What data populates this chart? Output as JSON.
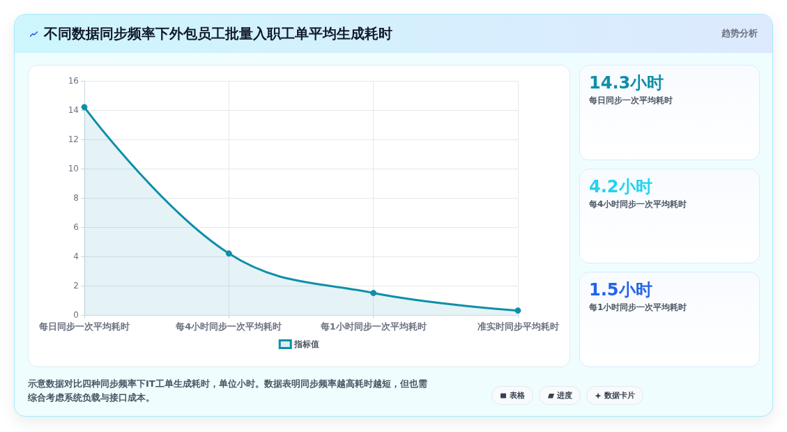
{
  "chart_data": [
    {
      "type": "area",
      "title": "不同数据同步频率下外包员工批量入职工单平均生成耗时",
      "categories": [
        "每日同步一次平均耗时",
        "每4小时同步一次平均耗时",
        "每1小时同步一次平均耗时",
        "准实时同步平均耗时"
      ],
      "series": [
        {
          "name": "指标值",
          "color": "#0e8fa8",
          "values": [
            14.2,
            4.2,
            1.5,
            0.3
          ]
        }
      ],
      "ylim": [
        0,
        16
      ],
      "yticks": [
        0,
        2,
        4,
        6,
        8,
        10,
        12,
        14,
        16
      ],
      "grid": true,
      "legend": "bottom",
      "marker": "circle",
      "line_style": "solid",
      "annotations": [
        "趋势分析",
        "示意数据对比四种同步频率下IT工单生成耗时，单位小时。数据表明同步频率越高耗时越短，但也需综合考虑系统负载与接口成本。",
        "表格",
        "进度",
        "数据卡片"
      ]
    },
    {
      "type": "other",
      "annotations": [
        "14.3小时",
        "每日同步一次平均耗时",
        "4.2小时",
        "每4小时同步一次平均耗时",
        "1.5小时",
        "每1小时同步一次平均耗时"
      ],
      "colors": [
        "#0e8fa8",
        "#22d3ee",
        "#2563eb"
      ]
    }
  ]
}
